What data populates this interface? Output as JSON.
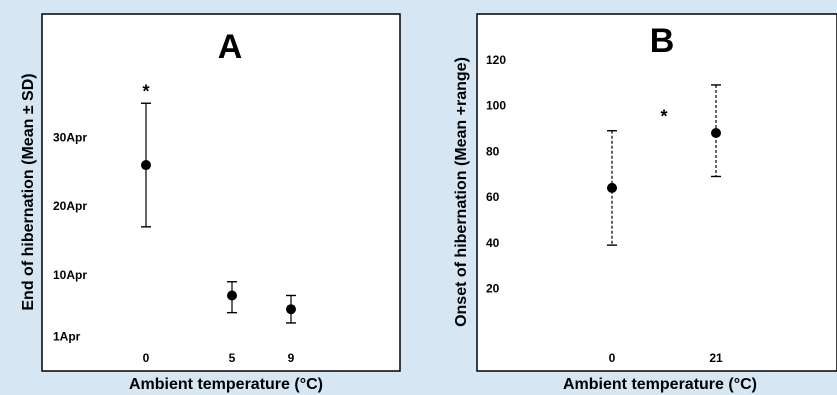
{
  "colors": {
    "background": "#d6e7f3",
    "panel": "#ffffff",
    "ink": "#000000"
  },
  "chart_data": [
    {
      "type": "scatter",
      "panel_label": "A",
      "title": "",
      "xlabel": "Ambient temperature (°C)",
      "ylabel": "End of hibernation (Mean ± SD)",
      "categories": [
        "0",
        "5",
        "9"
      ],
      "y_ticks": [
        {
          "value": 1,
          "label": "1Apr"
        },
        {
          "value": 10,
          "label": "10Apr"
        },
        {
          "value": 20,
          "label": "20Apr"
        },
        {
          "value": 30,
          "label": "30Apr"
        }
      ],
      "ylim": [
        -4,
        48
      ],
      "series": [
        {
          "error_bar_style": "solid",
          "points": [
            {
              "category": "0",
              "mean": 26,
              "err_low": 17,
              "err_high": 35
            },
            {
              "category": "5",
              "mean": 7,
              "err_low": 4.5,
              "err_high": 9
            },
            {
              "category": "9",
              "mean": 5,
              "err_low": 3,
              "err_high": 7
            }
          ]
        }
      ],
      "annotations": [
        {
          "text": "*",
          "category": "0",
          "y": 37
        }
      ],
      "grid": false,
      "legend": "none"
    },
    {
      "type": "scatter",
      "panel_label": "B",
      "title": "",
      "xlabel": "Ambient temperature (°C)",
      "ylabel": "Onset of hibernation (Mean +range)",
      "categories": [
        "0",
        "21"
      ],
      "y_ticks": [
        {
          "value": 20,
          "label": "20"
        },
        {
          "value": 40,
          "label": "40"
        },
        {
          "value": 60,
          "label": "60"
        },
        {
          "value": 80,
          "label": "80"
        },
        {
          "value": 100,
          "label": "100"
        },
        {
          "value": 120,
          "label": "120"
        }
      ],
      "ylim": [
        -16,
        140
      ],
      "series": [
        {
          "error_bar_style": "dashed",
          "points": [
            {
              "category": "0",
              "mean": 64,
              "err_low": 39,
              "err_high": 89
            },
            {
              "category": "21",
              "mean": 88,
              "err_low": 69,
              "err_high": 109
            }
          ]
        }
      ],
      "annotations": [
        {
          "text": "*",
          "between": [
            "0",
            "21"
          ],
          "y": 96
        }
      ],
      "grid": false,
      "legend": "none"
    }
  ]
}
